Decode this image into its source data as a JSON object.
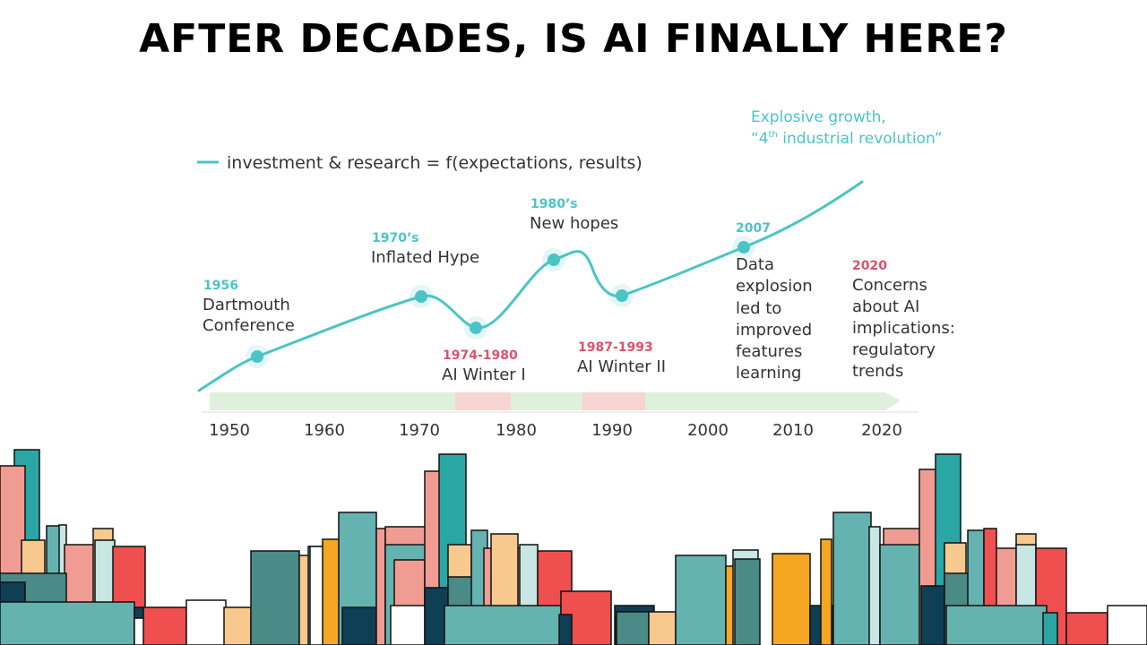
{
  "title": "AFTER DECADES, IS AI FINALLY HERE?",
  "colors": {
    "teal": "#4bc4c6",
    "red_label": "#e0506a",
    "text": "#333333",
    "arrow": "#dff0dc",
    "winter": "#f7d4d4"
  },
  "chart": {
    "legend": "investment & research = f(expectations, results)",
    "top_note": {
      "line1": "Explosive growth,",
      "line2_pre": "“4",
      "line2_sup": "th",
      "line2_post": " industrial revolution”"
    },
    "x_ticks": [
      "1950",
      "1960",
      "1970",
      "1980",
      "1990",
      "2000",
      "2010",
      "2020"
    ],
    "milestones": [
      {
        "year": "1956",
        "lines": [
          "Dartmouth",
          "Conference"
        ]
      },
      {
        "year": "1970’s",
        "lines": [
          "Inflated Hype"
        ]
      },
      {
        "year": "1980’s",
        "lines": [
          "New hopes"
        ]
      },
      {
        "year": "2007",
        "lines": [
          "Data",
          "explosion",
          "led to",
          "improved",
          "features",
          "learning"
        ]
      },
      {
        "year": "2020",
        "lines": [
          "Concerns",
          "about AI",
          "implications:",
          "regulatory",
          "trends"
        ]
      }
    ],
    "winters": [
      {
        "years": "1974-1980",
        "label": "AI Winter I"
      },
      {
        "years": "1987-1993",
        "label": "AI Winter II"
      }
    ]
  },
  "chart_data": {
    "type": "line",
    "title": "",
    "xlabel": "",
    "ylabel": "",
    "x_ticks": [
      1950,
      1960,
      1970,
      1980,
      1990,
      2000,
      2010,
      2020
    ],
    "xlim": [
      1950,
      2020
    ],
    "series": [
      {
        "name": "investment & research = f(expectations, results)",
        "points": [
          {
            "x": 1950,
            "y": 0
          },
          {
            "x": 1956,
            "y": 42
          },
          {
            "x": 1971,
            "y": 106
          },
          {
            "x": 1977,
            "y": 72
          },
          {
            "x": 1985,
            "y": 146
          },
          {
            "x": 1989,
            "y": 140
          },
          {
            "x": 1993,
            "y": 107
          },
          {
            "x": 2007,
            "y": 162
          },
          {
            "x": 2019,
            "y": 233
          }
        ],
        "markers": [
          {
            "x": 1956,
            "y": 42
          },
          {
            "x": 1971,
            "y": 106
          },
          {
            "x": 1977,
            "y": 72
          },
          {
            "x": 1985,
            "y": 146
          },
          {
            "x": 1993,
            "y": 107
          },
          {
            "x": 2007,
            "y": 162
          }
        ]
      }
    ],
    "shaded_periods": [
      {
        "from": 1974,
        "to": 1980,
        "label": "AI Winter I"
      },
      {
        "from": 1987,
        "to": 1993,
        "label": "AI Winter II"
      }
    ]
  },
  "skyline": {
    "palette": [
      "#f19c93",
      "#65b3b0",
      "#0f3f55",
      "#ef4f4f",
      "#f8c98e",
      "#f5a623",
      "#c8e6e3",
      "#2aa7a5",
      "#ffffff",
      "#4a8a87"
    ]
  }
}
